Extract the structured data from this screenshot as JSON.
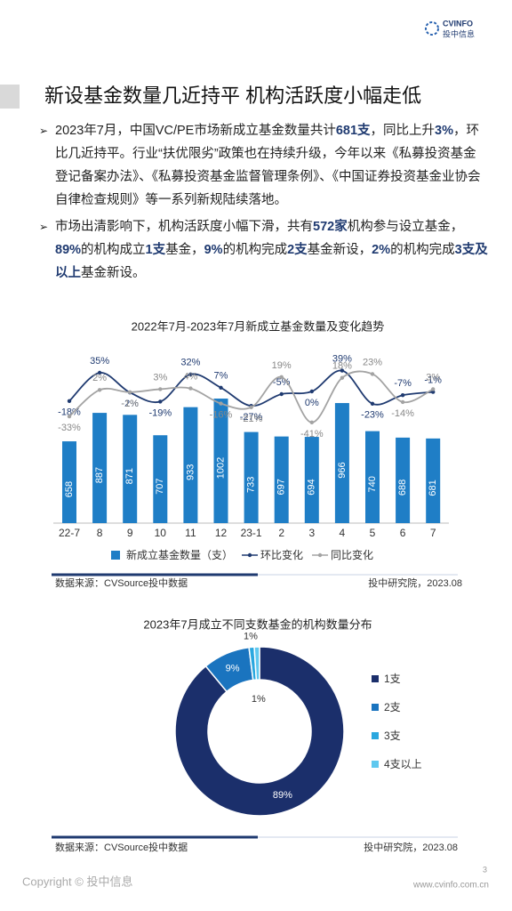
{
  "header": {
    "logo": "CVINFO",
    "logo_sub": "投中信息"
  },
  "title": "新设基金数量几近持平 机构活跃度小幅走低",
  "bullets": [
    {
      "runs": [
        {
          "text": "2023年7月，中国VC/PE市场新成立基金数量共计",
          "bold": false
        },
        {
          "text": "681支",
          "bold": true
        },
        {
          "text": "，同比上升",
          "bold": false
        },
        {
          "text": "3%",
          "bold": true
        },
        {
          "text": "，环比几近持平。行业“扶优限劣”政策也在持续升级，今年以来《私募投资基金登记备案办法》、《私募投资基金监督管理条例》、《中国证券投资基金业协会自律检查规则》等一系列新规陆续落地。",
          "bold": false
        }
      ]
    },
    {
      "runs": [
        {
          "text": "市场出清影响下，机构活跃度小幅下滑，共有",
          "bold": false
        },
        {
          "text": "572家",
          "bold": true
        },
        {
          "text": "机构参与设立基金，",
          "bold": false
        },
        {
          "text": "89%",
          "bold": true
        },
        {
          "text": "的机构成立",
          "bold": false
        },
        {
          "text": "1支",
          "bold": true
        },
        {
          "text": "基金，",
          "bold": false
        },
        {
          "text": "9%",
          "bold": true
        },
        {
          "text": "的机构完成",
          "bold": false
        },
        {
          "text": "2支",
          "bold": true
        },
        {
          "text": "基金新设，",
          "bold": false
        },
        {
          "text": "2%",
          "bold": true
        },
        {
          "text": "的机构完成",
          "bold": false
        },
        {
          "text": "3支及以上",
          "bold": true
        },
        {
          "text": "基金新设。",
          "bold": false
        }
      ]
    }
  ],
  "chart_data": [
    {
      "type": "bar",
      "title": "2022年7月-2023年7月新成立基金数量及变化趋势",
      "categories": [
        "22-7",
        "8",
        "9",
        "10",
        "11",
        "12",
        "23-1",
        "2",
        "3",
        "4",
        "5",
        "6",
        "7"
      ],
      "series": [
        {
          "name": "新成立基金数量（支）",
          "color": "#1f7ec6",
          "values": [
            658,
            887,
            871,
            707,
            933,
            1002,
            733,
            697,
            694,
            966,
            740,
            688,
            681
          ]
        },
        {
          "name": "环比变化",
          "type": "line",
          "axis": "y2",
          "color": "#1f3a70",
          "values": [
            -18,
            35,
            -2,
            -19,
            32,
            7,
            -27,
            -5,
            0,
            39,
            -23,
            -7,
            -1
          ],
          "value_labels": [
            "-18%",
            "35%",
            "-2%",
            "-19%",
            "32%",
            "7%",
            "-27%",
            "-5%",
            "0%",
            "39%",
            "-23%",
            "-7%",
            "-1%"
          ]
        },
        {
          "name": "同比变化",
          "type": "line",
          "axis": "y2",
          "color": "#a3a3a3",
          "values": [
            -33,
            2,
            -1,
            3,
            4,
            -16,
            -21,
            19,
            -41,
            18,
            23,
            -14,
            3
          ],
          "value_labels": [
            "-33%",
            "2%",
            "-1%",
            "3%",
            "4%",
            "-16%",
            "-21%",
            "19%",
            "-41%",
            "18%",
            "23%",
            "-14%",
            "3%"
          ]
        }
      ]
    },
    {
      "type": "pie",
      "title": "2023年7月成立不同支数基金的机构数量分布",
      "categories": [
        "1支",
        "2支",
        "3支",
        "4支以上"
      ],
      "values": [
        89,
        9,
        1,
        1
      ],
      "value_labels": [
        "89%",
        "9%",
        "1%",
        "1%"
      ],
      "colors": [
        "#1b2f6b",
        "#1a74bf",
        "#2aa7df",
        "#5fc8ef"
      ]
    }
  ],
  "sources": [
    {
      "left": "数据来源：CVSource投中数据",
      "right": "投中研究院，2023.08"
    },
    {
      "left": "数据来源：CVSource投中数据",
      "right": "投中研究院，2023.08"
    }
  ],
  "footer": {
    "copyright": "Copyright © 投中信息",
    "page": "3",
    "url": "www.cvinfo.com.cn"
  }
}
